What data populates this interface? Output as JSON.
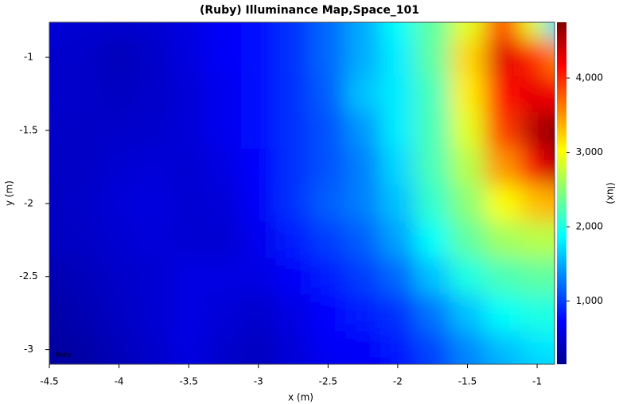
{
  "chart_data": {
    "type": "heatmap",
    "title": "(Ruby) Illuminance Map,Space_101",
    "x_label": "x (m)",
    "y_label": "y (m)",
    "colorbar_label": "(lux)",
    "annotation": "Ruby",
    "colormap": "jet",
    "x": [
      -4.5,
      -4.25,
      -4,
      -3.75,
      -3.5,
      -3.25,
      -3,
      -2.75,
      -2.5,
      -2.25,
      -2,
      -1.75,
      -1.5,
      -1.25,
      -1,
      -0.875
    ],
    "y": [
      -0.76,
      -1,
      -1.25,
      -1.5,
      -1.75,
      -2,
      -2.25,
      -2.5,
      -2.75,
      -3,
      -3.1
    ],
    "z": [
      [
        550,
        520,
        500,
        520,
        600,
        700,
        800,
        950,
        1200,
        1500,
        1900,
        2300,
        2900,
        3800,
        2900,
        1700
      ],
      [
        500,
        480,
        420,
        480,
        580,
        700,
        800,
        950,
        1200,
        1500,
        1800,
        2300,
        3200,
        4300,
        4000,
        3600
      ],
      [
        500,
        480,
        450,
        480,
        550,
        650,
        800,
        950,
        1150,
        1600,
        1800,
        2200,
        3100,
        4100,
        4300,
        4200
      ],
      [
        480,
        470,
        480,
        500,
        550,
        650,
        800,
        950,
        1100,
        1400,
        1800,
        2200,
        2900,
        3900,
        4500,
        4700
      ],
      [
        470,
        470,
        520,
        550,
        520,
        600,
        750,
        950,
        1100,
        1300,
        1700,
        2200,
        2700,
        3500,
        4200,
        4500
      ],
      [
        460,
        480,
        550,
        580,
        520,
        550,
        700,
        950,
        1150,
        1300,
        1600,
        2100,
        2500,
        3000,
        3300,
        3400
      ],
      [
        450,
        470,
        520,
        560,
        520,
        520,
        650,
        850,
        1000,
        1150,
        1450,
        1900,
        2300,
        2600,
        2700,
        2700
      ],
      [
        380,
        420,
        480,
        520,
        600,
        600,
        600,
        700,
        850,
        1000,
        1200,
        1600,
        2000,
        2200,
        2300,
        2300
      ],
      [
        330,
        380,
        460,
        520,
        600,
        550,
        500,
        600,
        750,
        850,
        950,
        1250,
        1600,
        1900,
        2000,
        2000
      ],
      [
        300,
        330,
        420,
        500,
        600,
        500,
        450,
        550,
        700,
        700,
        850,
        1050,
        1350,
        1600,
        1750,
        1800
      ],
      [
        300,
        320,
        400,
        480,
        580,
        480,
        450,
        550,
        650,
        700,
        800,
        1000,
        1300,
        1500,
        1650,
        1700
      ]
    ],
    "xlim": [
      -4.5,
      -0.875
    ],
    "ylim": [
      -3.1,
      -0.76
    ],
    "xticks": [
      -4.5,
      -4,
      -3.5,
      -3,
      -2.5,
      -2,
      -1.5,
      -1
    ],
    "yticks": [
      -1,
      -1.5,
      -2,
      -2.5,
      -3
    ],
    "zlim": [
      150,
      4750
    ],
    "zticks": [
      {
        "value": 1000,
        "label": "1,000"
      },
      {
        "value": 2000,
        "label": "2,000"
      },
      {
        "value": 3000,
        "label": "3,000"
      },
      {
        "value": 4000,
        "label": "4,000"
      }
    ]
  }
}
